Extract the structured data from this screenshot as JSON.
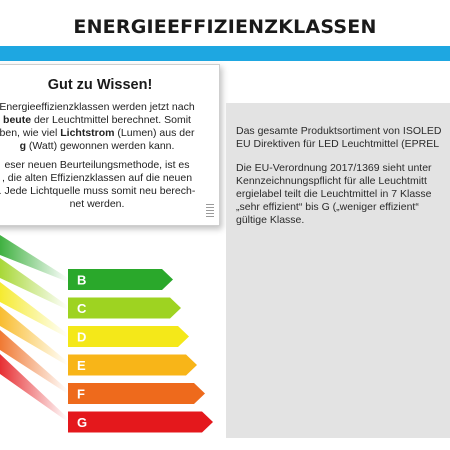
{
  "header": {
    "title": "ENERGIEEFFIZIENZKLASSEN",
    "stripe_color": "#1ea7e1"
  },
  "info_box": {
    "heading": "Gut zu Wissen!",
    "p1": {
      "l1": "Energieeffizienzklassen werden jetzt nach",
      "l2a": "",
      "l2b": "beute",
      "l2c": " der Leuchtmittel berechnet. Somit",
      "l3a": "ben, wie viel ",
      "l3b": "Lichtstrom",
      "l3c": " (Lumen) aus der",
      "l4a": "g",
      "l4b": " (Watt) gewonnen werden kann."
    },
    "p2": {
      "l1": "eser neuen Beurteilungsmethode, ist es",
      "l2": ", die alten Effizienzklassen auf die neuen",
      "l3": ". Jede Lichtquelle muss somit neu berech-",
      "l4": "net werden."
    }
  },
  "energy_label": {
    "classes": [
      {
        "letter": "B",
        "color": "#2aa82b"
      },
      {
        "letter": "C",
        "color": "#9ed321"
      },
      {
        "letter": "D",
        "color": "#f4e819"
      },
      {
        "letter": "E",
        "color": "#f8b518"
      },
      {
        "letter": "F",
        "color": "#ee6a1c"
      },
      {
        "letter": "G",
        "color": "#e4181c"
      }
    ]
  },
  "right_panel": {
    "p1_l1": "Das gesamte Produktsortiment von ISOLED",
    "p1_l2": "EU Direktiven für LED Leuchtmittel (EPREL",
    "p2_l1": "Die EU-Verordnung 2017/1369 sieht unter",
    "p2_l2": "Kennzeichnungspflicht für alle Leuchtmitt",
    "p2_l3": "ergielabel teilt die Leuchtmittel in 7 Klasse",
    "p2_l4": "„sehr effizient“ bis G („weniger effizient“",
    "p2_l5": "gültige Klasse."
  }
}
